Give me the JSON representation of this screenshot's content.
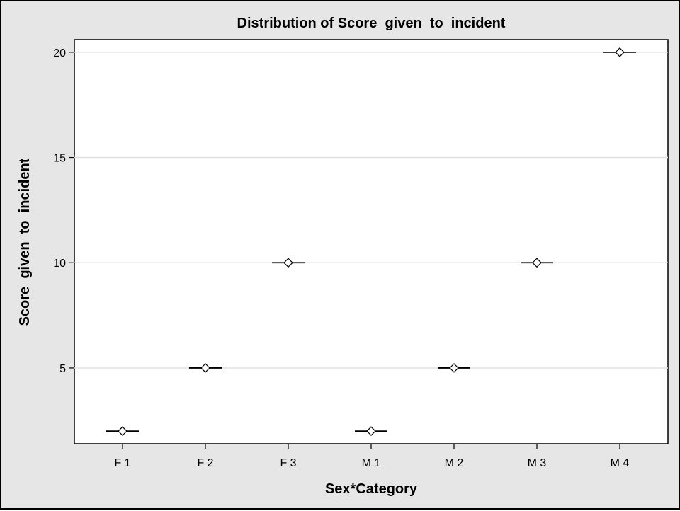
{
  "chart_data": {
    "type": "box",
    "title": "Distribution of Score  given  to  incident",
    "xlabel": "Sex*Category",
    "ylabel": "Score  given  to  incident",
    "categories": [
      "F 1",
      "F 2",
      "F 3",
      "M 1",
      "M 2",
      "M 3",
      "M 4"
    ],
    "values": [
      2,
      5,
      10,
      2,
      5,
      10,
      20
    ],
    "yticks": [
      5,
      10,
      15,
      20
    ],
    "ylim": [
      1.4,
      20.6
    ],
    "grid": "horizontal",
    "legend": "none",
    "colors": {
      "frame_background": "#e6e6e6",
      "plot_background": "#ffffff",
      "gridline": "#e0e0e0",
      "mark": "#000000"
    }
  }
}
